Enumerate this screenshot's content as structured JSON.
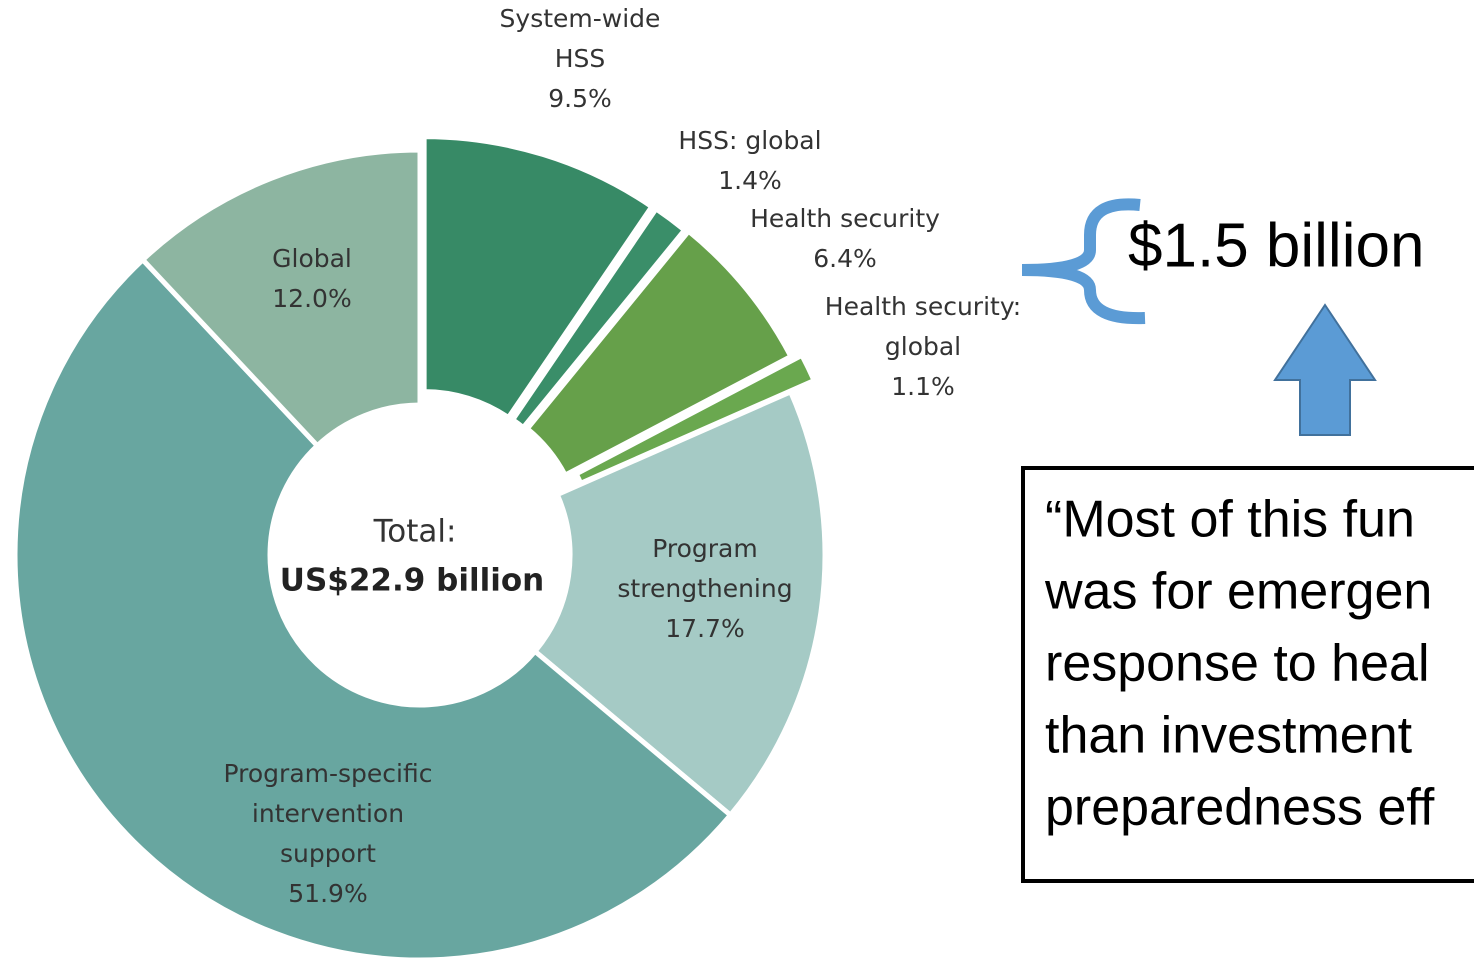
{
  "chart_data": {
    "type": "donut",
    "categories": [
      [
        "System-wide",
        "HSS"
      ],
      [
        "HSS: global"
      ],
      [
        "Health security"
      ],
      [
        "Health security:",
        "global"
      ],
      [
        "Program",
        "strengthening"
      ],
      [
        "Program-specific",
        "intervention",
        "support"
      ],
      [
        "Global"
      ]
    ],
    "values": [
      9.5,
      1.4,
      6.4,
      1.1,
      17.7,
      51.9,
      12.0
    ],
    "value_labels": [
      "9.5%",
      "1.4%",
      "6.4%",
      "1.1%",
      "17.7%",
      "51.9%",
      "12.0%"
    ],
    "colors": [
      "#378a66",
      "#3a8e69",
      "#66a04a",
      "#6aa84f",
      "#a5cac5",
      "#68a6a0",
      "#8db5a1"
    ],
    "center_label": "Total:",
    "center_value": "US$22.9 billion",
    "annotation": "$1.5 billion",
    "quote_lines": [
      "“Most of this fun",
      "was for emergen",
      "response to heal",
      "than investment",
      "preparedness eff"
    ]
  }
}
